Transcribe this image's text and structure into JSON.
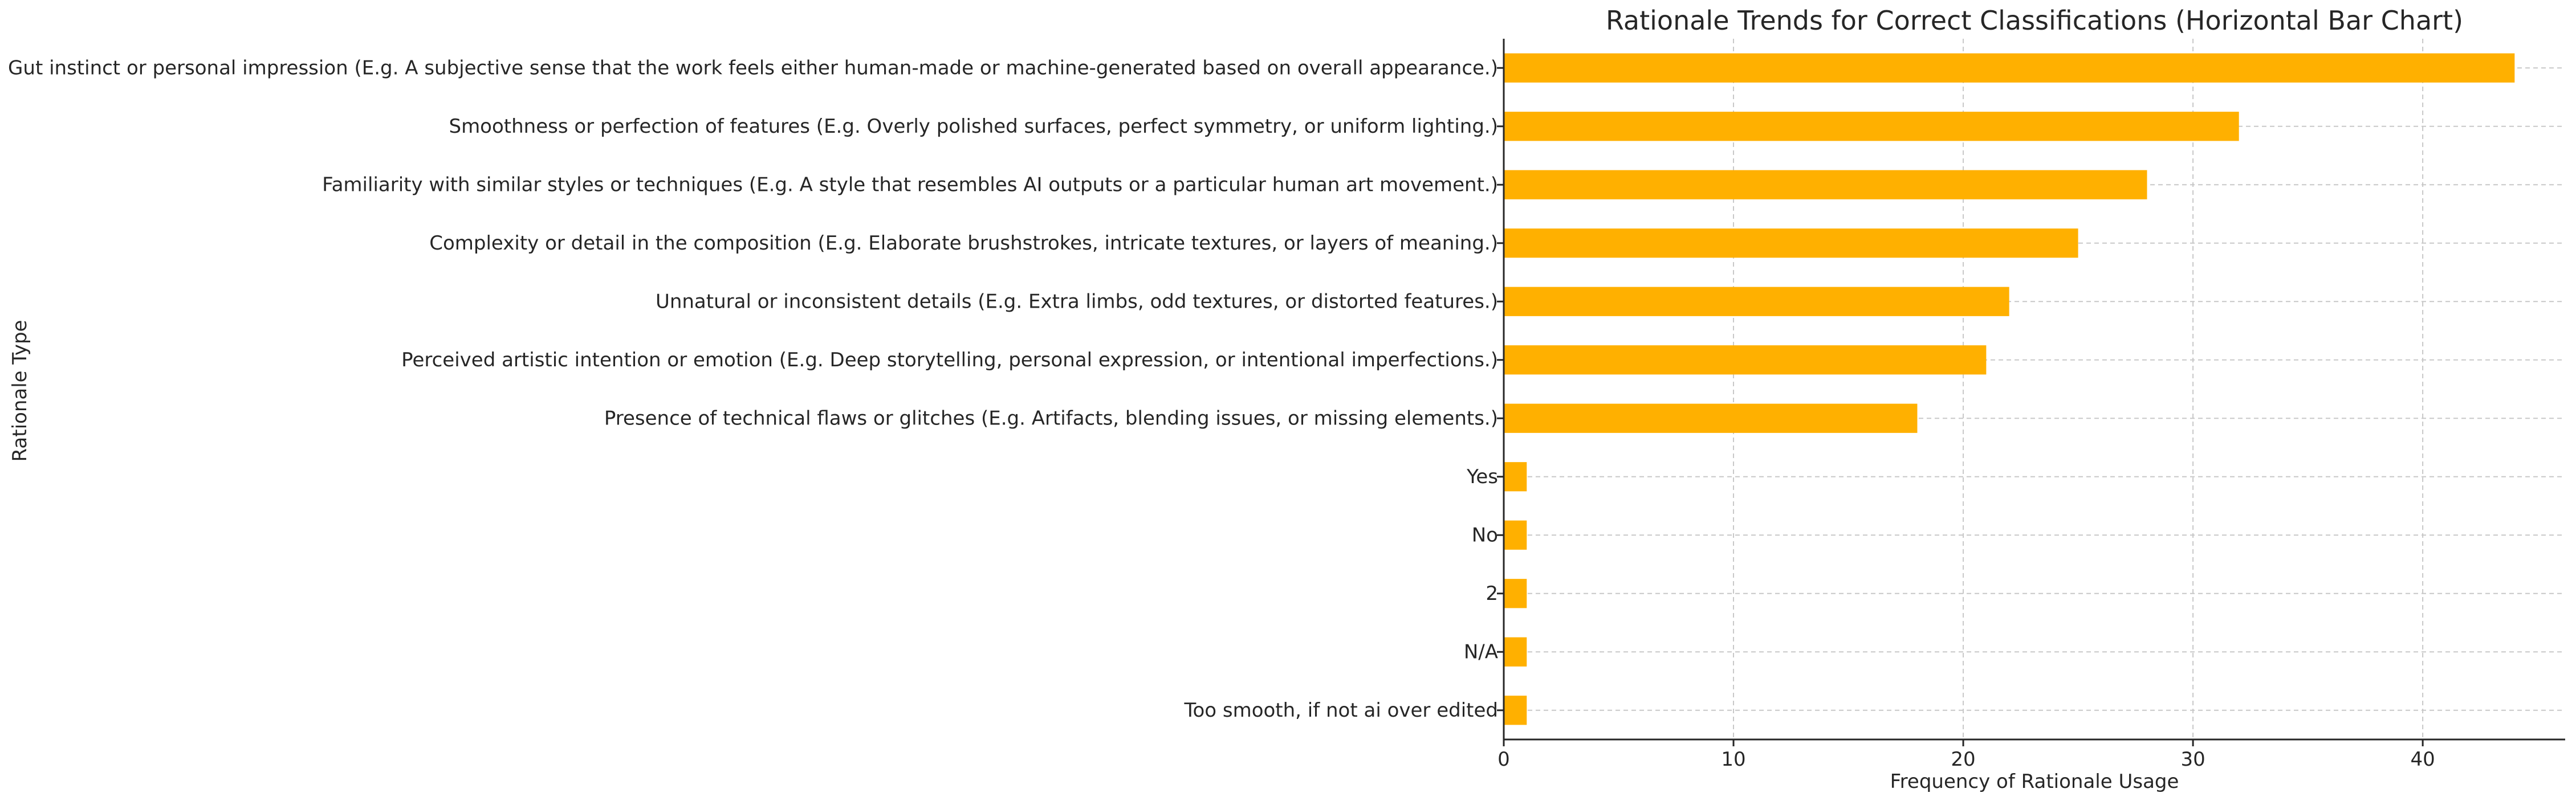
{
  "chart_data": {
    "type": "bar",
    "orientation": "horizontal",
    "title": "Rationale Trends for Correct Classifications (Horizontal Bar Chart)",
    "xlabel": "Frequency of Rationale Usage",
    "ylabel": "Rationale Type",
    "xlim": [
      0,
      46.2
    ],
    "xticks": [
      0,
      10,
      20,
      30,
      40
    ],
    "grid": true,
    "bar_color": "#FFB000",
    "categories": [
      "Gut instinct or personal impression (E.g. A subjective sense that the work feels either human-made or machine-generated based on overall appearance.)",
      "Smoothness or perfection of features (E.g. Overly polished surfaces, perfect symmetry, or uniform lighting.)",
      "Familiarity with similar styles or techniques (E.g. A style that resembles AI outputs or a particular human art movement.)",
      "Complexity or detail in the composition (E.g. Elaborate brushstrokes, intricate textures, or layers of meaning.)",
      "Unnatural or inconsistent details (E.g. Extra limbs, odd textures, or distorted features.)",
      "Perceived artistic intention or emotion (E.g. Deep storytelling, personal expression, or intentional imperfections.)",
      "Presence of technical flaws or glitches (E.g. Artifacts, blending issues, or missing elements.)",
      "Yes",
      "No",
      "2",
      "N/A",
      "Too smooth, if not ai over edited"
    ],
    "values": [
      44,
      32,
      28,
      25,
      22,
      21,
      18,
      1,
      1,
      1,
      1,
      1
    ]
  }
}
